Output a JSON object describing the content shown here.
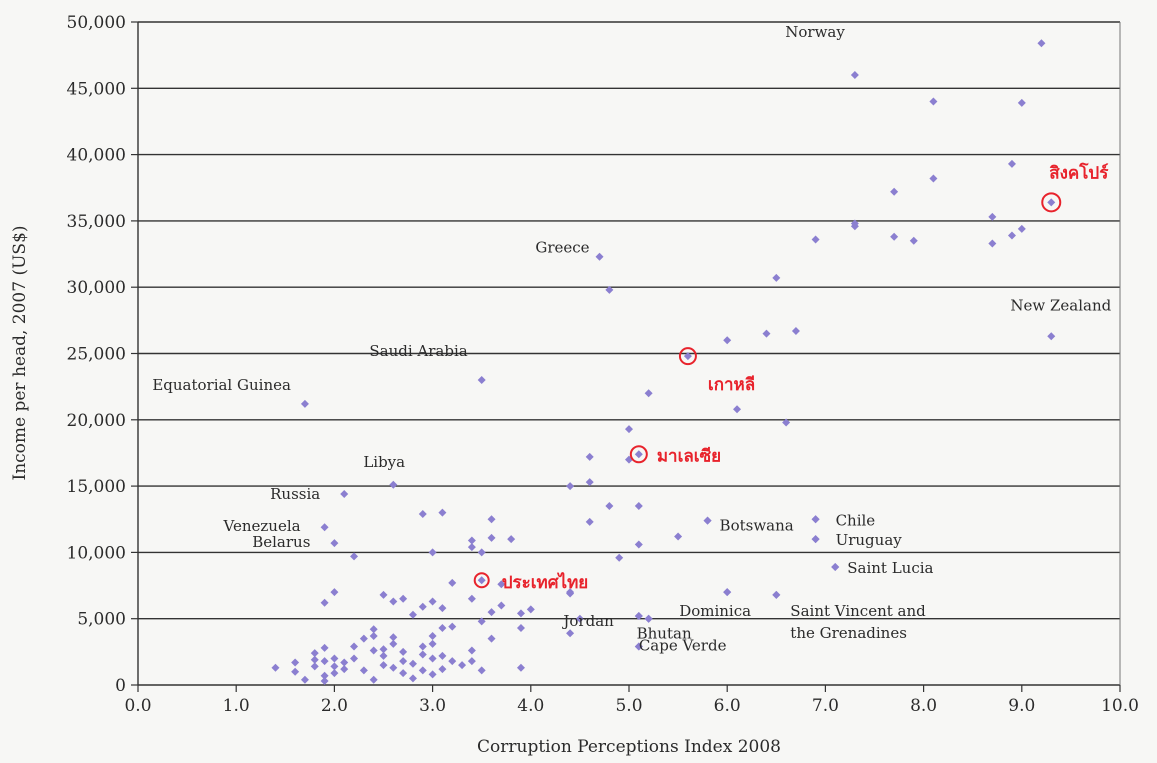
{
  "chart_data": {
    "type": "scatter",
    "title": "",
    "xlabel": "Corruption Perceptions Index 2008",
    "ylabel": "Income per head, 2007 (US$)",
    "xlim": [
      0,
      10
    ],
    "ylim": [
      0,
      50000
    ],
    "x_ticks": [
      "0.0",
      "1.0",
      "2.0",
      "3.0",
      "4.0",
      "5.0",
      "6.0",
      "7.0",
      "8.0",
      "9.0",
      "10.0"
    ],
    "y_ticks": [
      "0",
      "5,000",
      "10,000",
      "15,000",
      "20,000",
      "25,000",
      "30,000",
      "35,000",
      "40,000",
      "45,000",
      "50,000"
    ],
    "grid": "horizontal",
    "colors": {
      "points": "#8b7fd0",
      "highlight": "#e8232c",
      "grid": "#333333"
    },
    "points": [
      [
        1.4,
        1300
      ],
      [
        1.6,
        1700
      ],
      [
        1.6,
        1000
      ],
      [
        1.7,
        400
      ],
      [
        1.8,
        2400
      ],
      [
        1.8,
        1900
      ],
      [
        1.8,
        1400
      ],
      [
        1.9,
        2800
      ],
      [
        1.9,
        1800
      ],
      [
        1.9,
        700
      ],
      [
        1.9,
        300
      ],
      [
        2.0,
        2000
      ],
      [
        2.0,
        1400
      ],
      [
        2.0,
        900
      ],
      [
        2.1,
        1700
      ],
      [
        2.1,
        1200
      ],
      [
        2.2,
        2900
      ],
      [
        2.2,
        2000
      ],
      [
        2.3,
        3500
      ],
      [
        2.3,
        1100
      ],
      [
        2.4,
        4200
      ],
      [
        2.4,
        3700
      ],
      [
        2.4,
        2600
      ],
      [
        2.4,
        400
      ],
      [
        2.5,
        2700
      ],
      [
        2.5,
        2200
      ],
      [
        2.5,
        1500
      ],
      [
        2.6,
        3600
      ],
      [
        2.6,
        3100
      ],
      [
        2.6,
        1300
      ],
      [
        2.7,
        2500
      ],
      [
        2.7,
        1800
      ],
      [
        2.7,
        900
      ],
      [
        2.8,
        5300
      ],
      [
        2.8,
        1600
      ],
      [
        2.8,
        500
      ],
      [
        2.9,
        5900
      ],
      [
        2.9,
        2900
      ],
      [
        2.9,
        2300
      ],
      [
        2.9,
        1100
      ],
      [
        3.0,
        6300
      ],
      [
        3.0,
        3700
      ],
      [
        3.0,
        3100
      ],
      [
        3.0,
        2000
      ],
      [
        3.0,
        800
      ],
      [
        3.1,
        5800
      ],
      [
        3.1,
        4300
      ],
      [
        3.1,
        2200
      ],
      [
        3.1,
        1200
      ],
      [
        3.2,
        4400
      ],
      [
        3.2,
        1800
      ],
      [
        3.3,
        1500
      ],
      [
        3.4,
        2600
      ],
      [
        3.4,
        1800
      ],
      [
        3.5,
        1100
      ],
      [
        3.5,
        4800
      ],
      [
        3.6,
        5500
      ],
      [
        3.6,
        3500
      ],
      [
        3.7,
        6000
      ],
      [
        3.9,
        5400
      ],
      [
        3.9,
        4300
      ],
      [
        3.9,
        1300
      ],
      [
        4.0,
        5700
      ],
      [
        4.4,
        3900
      ],
      [
        4.4,
        6900
      ],
      [
        1.9,
        6200
      ],
      [
        2.0,
        7000
      ],
      [
        2.5,
        6800
      ],
      [
        2.7,
        6500
      ],
      [
        2.6,
        6300
      ],
      [
        3.4,
        6500
      ],
      [
        3.7,
        7600
      ],
      [
        3.2,
        7700
      ],
      [
        3.4,
        10900
      ],
      [
        3.4,
        10400
      ],
      [
        3.5,
        10000
      ],
      [
        3.0,
        10000
      ],
      [
        2.2,
        9700
      ],
      [
        2.9,
        12900
      ],
      [
        3.1,
        13000
      ],
      [
        3.6,
        12500
      ],
      [
        3.6,
        11100
      ],
      [
        3.8,
        11000
      ],
      [
        4.8,
        13500
      ],
      [
        5.1,
        13500
      ],
      [
        4.6,
        12300
      ],
      [
        5.1,
        10600
      ],
      [
        4.9,
        9600
      ],
      [
        5.0,
        19300
      ],
      [
        4.6,
        17200
      ],
      [
        4.6,
        15300
      ],
      [
        4.4,
        15000
      ],
      [
        5.0,
        17000
      ],
      [
        5.5,
        11200
      ],
      [
        5.2,
        22000
      ],
      [
        6.1,
        20800
      ],
      [
        6.6,
        19800
      ],
      [
        6.0,
        26000
      ],
      [
        6.4,
        26500
      ],
      [
        6.7,
        26700
      ],
      [
        6.5,
        30700
      ],
      [
        6.9,
        33600
      ],
      [
        7.3,
        34600
      ],
      [
        7.3,
        34800
      ],
      [
        7.7,
        33800
      ],
      [
        7.9,
        33500
      ],
      [
        7.7,
        37200
      ],
      [
        8.1,
        38200
      ],
      [
        8.7,
        35300
      ],
      [
        8.7,
        33300
      ],
      [
        8.9,
        33900
      ],
      [
        9.0,
        34400
      ],
      [
        8.9,
        39300
      ],
      [
        9.0,
        43900
      ],
      [
        8.1,
        44000
      ],
      [
        9.2,
        48400
      ],
      [
        4.8,
        29800
      ],
      [
        4.4,
        7000
      ],
      [
        7.1,
        8900
      ],
      [
        6.9,
        11000
      ],
      [
        6.9,
        12500
      ],
      [
        5.8,
        12400
      ],
      [
        6.5,
        6800
      ],
      [
        6.0,
        7000
      ],
      [
        5.1,
        5200
      ],
      [
        5.2,
        5000
      ],
      [
        4.5,
        5000
      ],
      [
        5.1,
        2900
      ]
    ],
    "labeled_points": [
      {
        "label": "Norway",
        "x": 7.3,
        "y": 46000
      },
      {
        "label": "Greece",
        "x": 4.7,
        "y": 32300
      },
      {
        "label": "New Zealand",
        "x": 9.3,
        "y": 26300
      },
      {
        "label": "Saudi Arabia",
        "x": 3.5,
        "y": 23000
      },
      {
        "label": "Equatorial Guinea",
        "x": 1.7,
        "y": 21200
      },
      {
        "label": "Libya",
        "x": 2.6,
        "y": 15100
      },
      {
        "label": "Russia",
        "x": 2.1,
        "y": 14400
      },
      {
        "label": "Venezuela",
        "x": 1.9,
        "y": 11900
      },
      {
        "label": "Belarus",
        "x": 2.0,
        "y": 10700
      },
      {
        "label": "Botswana",
        "x": 5.8,
        "y": 12400
      },
      {
        "label": "Chile",
        "x": 6.9,
        "y": 12500
      },
      {
        "label": "Uruguay",
        "x": 6.9,
        "y": 11000
      },
      {
        "label": "Saint Lucia",
        "x": 7.1,
        "y": 8900
      },
      {
        "label": "Jordan",
        "x": 5.1,
        "y": 5200
      },
      {
        "label": "Dominica",
        "x": 6.0,
        "y": 7000
      },
      {
        "label": "Bhutan",
        "x": 5.2,
        "y": 5000
      },
      {
        "label": "Cape Verde",
        "x": 5.1,
        "y": 2900
      },
      {
        "label": "Saint Vincent and",
        "x": 6.5,
        "y": 6800
      }
    ],
    "extra_label": "the Grenadines",
    "highlighted": [
      {
        "label": "สิงคโปร์",
        "x": 9.3,
        "y": 36400
      },
      {
        "label": "เกาหลี",
        "x": 5.6,
        "y": 24800
      },
      {
        "label": "มาเลเซีย",
        "x": 5.1,
        "y": 17400
      },
      {
        "label": "ประเทศไทย",
        "x": 3.5,
        "y": 7900
      }
    ]
  }
}
